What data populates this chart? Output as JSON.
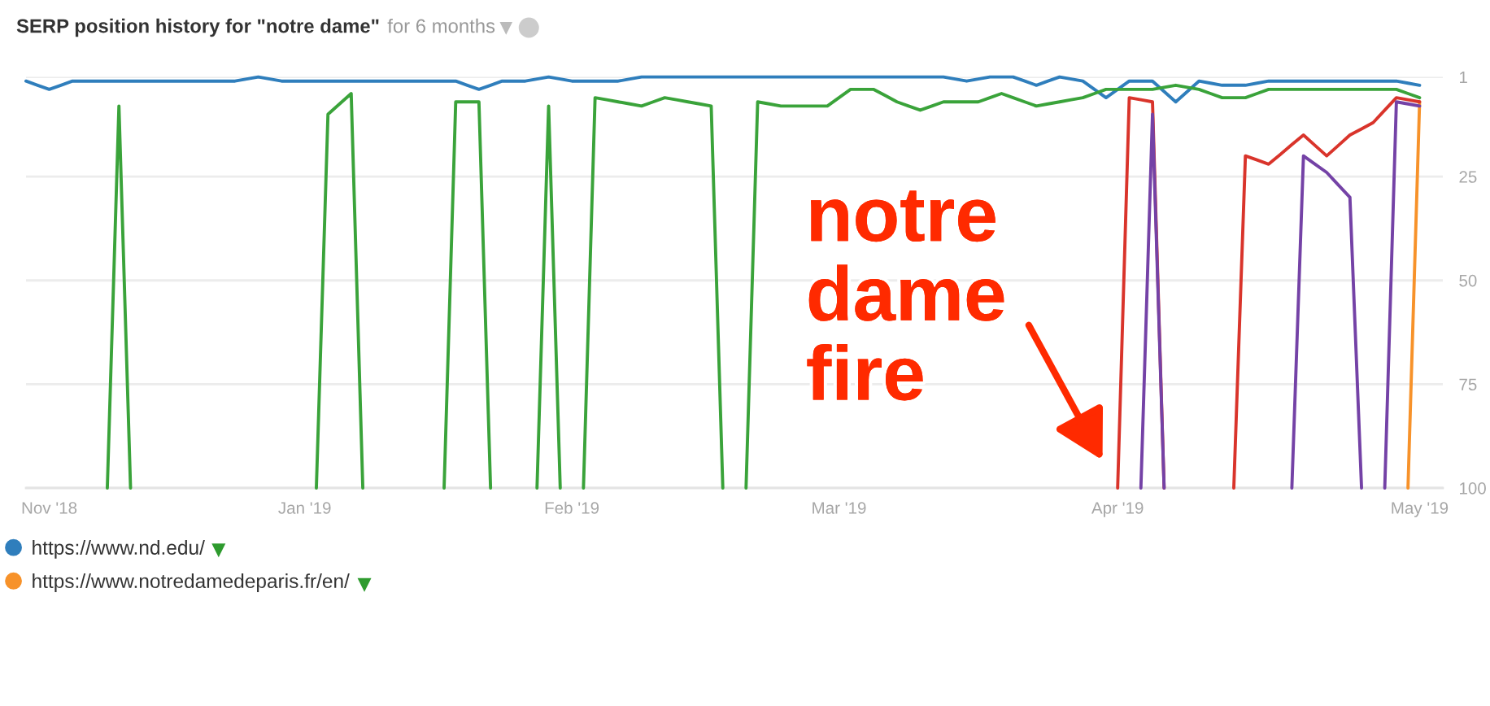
{
  "chart_data": {
    "type": "line",
    "title": "SERP position history for \"notre dame\"",
    "subtitle": "for 6 months",
    "categories": [
      null,
      null,
      "Nov '18",
      null,
      null,
      null,
      null,
      null,
      null,
      null,
      null,
      null,
      null,
      null,
      null,
      null,
      null,
      null,
      null,
      null,
      null,
      null,
      null,
      null,
      "Jan '19",
      null,
      null,
      null,
      null,
      null,
      null,
      null,
      null,
      null,
      null,
      null,
      null,
      null,
      null,
      null,
      null,
      null,
      null,
      null,
      null,
      null,
      null,
      "Feb '19",
      null,
      null,
      null,
      null,
      null,
      null,
      null,
      null,
      null,
      null,
      null,
      null,
      null,
      null,
      null,
      null,
      null,
      null,
      null,
      null,
      null,
      null,
      "Mar '19",
      null,
      null,
      null,
      null,
      null,
      null,
      null,
      null,
      null,
      null,
      null,
      null,
      null,
      null,
      null,
      null,
      null,
      null,
      null,
      null,
      null,
      null,
      null,
      "Apr '19",
      null,
      null,
      null,
      null,
      null,
      null,
      null,
      null,
      null,
      null,
      null,
      null,
      null,
      null,
      null,
      null,
      null,
      null,
      null,
      null,
      null,
      null,
      null,
      null,
      null,
      "May '19"
    ],
    "ylim": [
      100,
      1
    ],
    "yticks": [
      1,
      25,
      50,
      75,
      100
    ],
    "grid": "y",
    "legend": "bottom left",
    "series": [
      {
        "name": "https://www.nd.edu/",
        "color": "#2f7ebc",
        "values": [
          2,
          3,
          4,
          3,
          2,
          2,
          2,
          2,
          2,
          2,
          2,
          2,
          2,
          2,
          2,
          2,
          2,
          2,
          2,
          1.5,
          1,
          1.5,
          2,
          2,
          2,
          2,
          2,
          2,
          2,
          2,
          2,
          2,
          2,
          2,
          2,
          2,
          2,
          2,
          3,
          4,
          3,
          2,
          2,
          2,
          1.5,
          1,
          1.5,
          2,
          2,
          2,
          2,
          2,
          1.5,
          1,
          1,
          1,
          1,
          1,
          1,
          1,
          1,
          1,
          1,
          1,
          1,
          1,
          1,
          1,
          1,
          1,
          1,
          1,
          1,
          1,
          1,
          1,
          1,
          1,
          1,
          1,
          1.5,
          2,
          1.5,
          1,
          1,
          1,
          2,
          3,
          2,
          1,
          1.5,
          2,
          4,
          6,
          4,
          2,
          2,
          2,
          4.5,
          7,
          4.5,
          2,
          2.5,
          3,
          3,
          3,
          2.5,
          2,
          2,
          2,
          2,
          2,
          2,
          2,
          2,
          2,
          2,
          2,
          2,
          2.5,
          3
        ]
      },
      {
        "color": "#3aa33a",
        "values": [
          null,
          null,
          null,
          null,
          null,
          null,
          null,
          100,
          8,
          100,
          null,
          null,
          null,
          null,
          null,
          null,
          null,
          null,
          null,
          null,
          null,
          null,
          null,
          null,
          null,
          100,
          10,
          7.5,
          5,
          100,
          null,
          null,
          null,
          null,
          null,
          null,
          100,
          7,
          7,
          7,
          100,
          null,
          null,
          null,
          100,
          8,
          100,
          null,
          100,
          6,
          6.5,
          7,
          7.5,
          8,
          7,
          6,
          6.5,
          7,
          7.5,
          8,
          100,
          null,
          100,
          7,
          7.5,
          8,
          8,
          8,
          8,
          8,
          6,
          4,
          4,
          4,
          5.5,
          7,
          8,
          9,
          8,
          7,
          7,
          7,
          7,
          6,
          5,
          6,
          7,
          8,
          7.5,
          7,
          6.5,
          6,
          5,
          4,
          4,
          4,
          4,
          4,
          3.5,
          3,
          3.5,
          4,
          5,
          6,
          6,
          6,
          5,
          4,
          4,
          4,
          4,
          4,
          4,
          4,
          4,
          4,
          4,
          4,
          4,
          5,
          6
        ]
      },
      {
        "name": "https://www.notredamedeparis.fr/en/",
        "color": "#f7922a",
        "values": [
          null,
          null,
          null,
          null,
          null,
          null,
          null,
          null,
          null,
          null,
          null,
          null,
          null,
          null,
          null,
          null,
          null,
          null,
          null,
          null,
          null,
          null,
          null,
          null,
          null,
          null,
          null,
          null,
          null,
          null,
          null,
          null,
          null,
          null,
          null,
          null,
          null,
          null,
          null,
          null,
          null,
          null,
          null,
          null,
          null,
          null,
          null,
          null,
          null,
          null,
          null,
          null,
          null,
          null,
          null,
          null,
          null,
          null,
          null,
          null,
          null,
          null,
          null,
          null,
          null,
          null,
          null,
          null,
          null,
          null,
          null,
          null,
          null,
          null,
          null,
          null,
          null,
          null,
          null,
          null,
          null,
          null,
          null,
          null,
          null,
          null,
          null,
          null,
          null,
          null,
          null,
          null,
          null,
          null,
          null,
          null,
          null,
          null,
          null,
          null,
          null,
          null,
          null,
          null,
          null,
          null,
          null,
          null,
          null,
          null,
          null,
          null,
          null,
          null,
          null,
          null,
          null,
          null,
          null,
          100,
          7
        ]
      },
      {
        "color": "#d9342b",
        "values": [
          null,
          null,
          null,
          null,
          null,
          null,
          null,
          null,
          null,
          null,
          null,
          null,
          null,
          null,
          null,
          null,
          null,
          null,
          null,
          null,
          null,
          null,
          null,
          null,
          null,
          null,
          null,
          null,
          null,
          null,
          null,
          null,
          null,
          null,
          null,
          null,
          null,
          null,
          null,
          null,
          null,
          null,
          null,
          null,
          null,
          null,
          null,
          null,
          null,
          null,
          null,
          null,
          null,
          null,
          null,
          null,
          null,
          null,
          null,
          null,
          null,
          null,
          null,
          null,
          null,
          null,
          null,
          null,
          null,
          null,
          null,
          null,
          null,
          null,
          null,
          null,
          null,
          null,
          null,
          null,
          null,
          null,
          null,
          null,
          null,
          null,
          null,
          null,
          null,
          null,
          null,
          null,
          null,
          null,
          100,
          6,
          6.5,
          7,
          100,
          null,
          null,
          null,
          null,
          null,
          100,
          20,
          21,
          22,
          19.7,
          17.3,
          15,
          17.5,
          20,
          17.5,
          15,
          13.5,
          12,
          9,
          6,
          6.5,
          7
        ]
      },
      {
        "color": "#7442a6",
        "values": [
          null,
          null,
          null,
          null,
          null,
          null,
          null,
          null,
          null,
          null,
          null,
          null,
          null,
          null,
          null,
          null,
          null,
          null,
          null,
          null,
          null,
          null,
          null,
          null,
          null,
          null,
          null,
          null,
          null,
          null,
          null,
          null,
          null,
          null,
          null,
          null,
          null,
          null,
          null,
          null,
          null,
          null,
          null,
          null,
          null,
          null,
          null,
          null,
          null,
          null,
          null,
          null,
          null,
          null,
          null,
          null,
          null,
          null,
          null,
          null,
          null,
          null,
          null,
          null,
          null,
          null,
          null,
          null,
          null,
          null,
          null,
          null,
          null,
          null,
          null,
          null,
          null,
          null,
          null,
          null,
          null,
          null,
          null,
          null,
          null,
          null,
          null,
          null,
          null,
          null,
          null,
          null,
          null,
          null,
          null,
          null,
          100,
          10,
          100,
          null,
          null,
          null,
          null,
          null,
          null,
          null,
          null,
          null,
          null,
          100,
          20,
          22,
          24,
          27,
          30,
          100,
          null,
          100,
          7,
          7.5,
          8
        ]
      }
    ],
    "annotations": [
      {
        "text": "notre\ndame\nfire",
        "x": "Apr '19",
        "y": 100
      }
    ]
  }
}
